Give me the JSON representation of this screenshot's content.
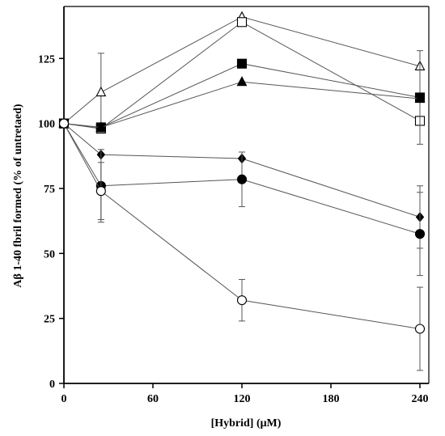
{
  "chart_data": {
    "type": "line",
    "xlabel": "[Hybrid] (μM)",
    "ylabel": "Aβ 1-40 fbril formed (% of untretaed)",
    "xlim": [
      0,
      246
    ],
    "ylim": [
      0,
      145
    ],
    "x_ticks": [
      0,
      60,
      120,
      180,
      240
    ],
    "y_ticks": [
      0,
      25,
      50,
      75,
      100,
      125
    ],
    "x_tick_labels": [
      "0",
      "60",
      "120",
      "180",
      "240"
    ],
    "y_tick_labels": [
      "0",
      "25",
      "50",
      "75",
      "100",
      "125"
    ],
    "grid": false,
    "legend": "none",
    "series": [
      {
        "marker": "open-triangle",
        "x": [
          0,
          25,
          120,
          240
        ],
        "y": [
          100,
          112,
          141,
          122
        ],
        "err": [
          0,
          15,
          0,
          0
        ]
      },
      {
        "marker": "open-square",
        "x": [
          0,
          25,
          120,
          240
        ],
        "y": [
          100,
          98,
          139,
          101
        ],
        "err": [
          0,
          0,
          0,
          0
        ]
      },
      {
        "marker": "filled-square",
        "x": [
          0,
          25,
          120,
          240
        ],
        "y": [
          100,
          98.5,
          123,
          110
        ],
        "err": [
          0,
          0,
          0,
          18
        ]
      },
      {
        "marker": "filled-triangle",
        "x": [
          0,
          25,
          120,
          240
        ],
        "y": [
          100,
          98.5,
          116,
          109.5
        ],
        "err": [
          0,
          0,
          0,
          0
        ]
      },
      {
        "marker": "filled-diamond",
        "x": [
          0,
          25,
          120,
          240
        ],
        "y": [
          100,
          88,
          86.5,
          64
        ],
        "err": [
          0,
          0,
          0,
          12
        ]
      },
      {
        "marker": "filled-circle",
        "x": [
          0,
          25,
          120,
          240
        ],
        "y": [
          100,
          76,
          78.5,
          57.5
        ],
        "err": [
          0,
          14,
          10.5,
          16
        ]
      },
      {
        "marker": "open-circle",
        "x": [
          0,
          25,
          120,
          240
        ],
        "y": [
          100,
          74,
          32,
          21
        ],
        "err": [
          0,
          11,
          8,
          16
        ]
      }
    ]
  }
}
